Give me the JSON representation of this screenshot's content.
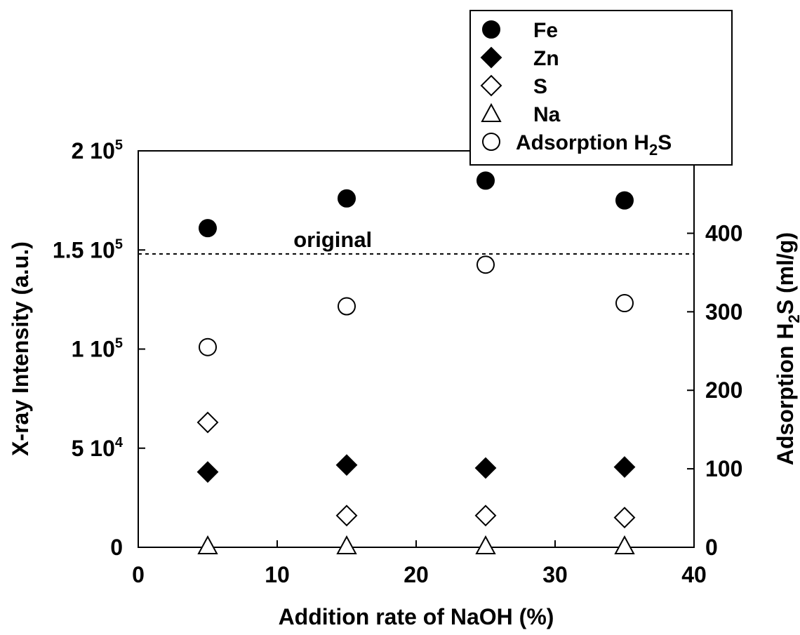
{
  "chart_data": {
    "type": "scatter",
    "xlabel": "Addition rate of NaOH (%)",
    "ylabel_left": "X-ray Intensity (a.u.)",
    "ylabel_right": {
      "prefix": "Adsorption H",
      "sub": "2",
      "suffix": "S (ml/g)"
    },
    "xlim": [
      0,
      40
    ],
    "ylim_left": [
      0,
      200000
    ],
    "ylim_right": [
      0,
      505
    ],
    "x_ticks": [
      "0",
      "10",
      "20",
      "30",
      "40"
    ],
    "y_left_ticks": [
      {
        "value": 0,
        "mant": "0",
        "exp": ""
      },
      {
        "value": 50000,
        "mant": "5 10",
        "exp": "4"
      },
      {
        "value": 100000,
        "mant": "1 10",
        "exp": "5"
      },
      {
        "value": 150000,
        "mant": "1.5 10",
        "exp": "5"
      },
      {
        "value": 200000,
        "mant": "2 10",
        "exp": "5"
      }
    ],
    "y_right_ticks": [
      "0",
      "100",
      "200",
      "300",
      "400"
    ],
    "reference_line": {
      "y": 148000,
      "label": "original"
    },
    "series": [
      {
        "name": "Fe",
        "marker": "filled-circle",
        "axis": "left",
        "x": [
          5,
          15,
          25,
          35
        ],
        "y": [
          161000,
          176000,
          185000,
          175000
        ]
      },
      {
        "name": "Zn",
        "marker": "filled-diamond",
        "axis": "left",
        "x": [
          5,
          15,
          25,
          35
        ],
        "y": [
          38000,
          41500,
          40000,
          40500
        ]
      },
      {
        "name": "S",
        "marker": "open-diamond",
        "axis": "left",
        "x": [
          5,
          15,
          25,
          35
        ],
        "y": [
          63000,
          16000,
          16000,
          15000
        ]
      },
      {
        "name": "Na",
        "marker": "open-triangle",
        "axis": "left",
        "x": [
          5,
          15,
          25,
          35
        ],
        "y": [
          0,
          0,
          0,
          0
        ]
      },
      {
        "name": "Adsorption H₂S",
        "legend_label": {
          "prefix": "Adsorption H",
          "sub": "2",
          "suffix": "S"
        },
        "marker": "open-circle",
        "axis": "right",
        "x": [
          5,
          15,
          25,
          35
        ],
        "y": [
          255,
          307,
          360,
          311
        ]
      }
    ]
  }
}
